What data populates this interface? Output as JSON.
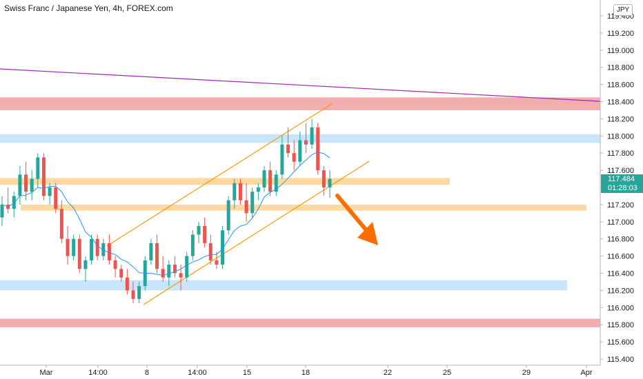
{
  "header": {
    "title": "Swiss Franc / Japanese Yen, 4h, FOREX.com",
    "currency": "JPY"
  },
  "badge": {
    "price": "117.484",
    "timer": "01:28:03"
  },
  "colors": {
    "up": "#26a69a",
    "down": "#ef5350",
    "ma": "#2196f3",
    "channel": "#ff9800",
    "trendline": "#9c27b0",
    "arrow": "#ff6d00",
    "zone_red": "#ef9a9a",
    "zone_blue": "#bbdefb",
    "zone_orange": "#ffcc80"
  },
  "chart_data": {
    "type": "candlestick",
    "y_range": [
      115.4,
      119.5
    ],
    "y_ticks": [
      "119.400",
      "119.200",
      "119.000",
      "118.800",
      "118.600",
      "118.400",
      "118.200",
      "118.000",
      "117.800",
      "117.600",
      "117.400",
      "117.200",
      "117.000",
      "116.800",
      "116.600",
      "116.400",
      "116.200",
      "116.000",
      "115.800",
      "115.600",
      "115.400"
    ],
    "x_ticks": [
      "Mar",
      "14:00",
      "8",
      "14:00",
      "15",
      "18",
      "22",
      "25",
      "29",
      "Apr"
    ],
    "ohlc": [
      [
        117.05,
        117.3,
        116.95,
        117.2
      ],
      [
        117.2,
        117.4,
        117.1,
        117.15
      ],
      [
        117.15,
        117.35,
        117.05,
        117.3
      ],
      [
        117.3,
        117.65,
        117.2,
        117.55
      ],
      [
        117.55,
        117.7,
        117.25,
        117.35
      ],
      [
        117.35,
        117.6,
        117.25,
        117.5
      ],
      [
        117.5,
        117.8,
        117.4,
        117.75
      ],
      [
        117.75,
        117.8,
        117.25,
        117.3
      ],
      [
        117.3,
        117.45,
        117.2,
        117.4
      ],
      [
        117.4,
        117.45,
        117.1,
        117.15
      ],
      [
        117.15,
        117.25,
        116.75,
        116.8
      ],
      [
        116.8,
        116.95,
        116.5,
        116.6
      ],
      [
        116.6,
        116.85,
        116.55,
        116.8
      ],
      [
        116.8,
        116.85,
        116.4,
        116.45
      ],
      [
        116.45,
        116.6,
        116.3,
        116.55
      ],
      [
        116.55,
        116.85,
        116.5,
        116.8
      ],
      [
        116.8,
        116.85,
        116.55,
        116.6
      ],
      [
        116.6,
        116.8,
        116.55,
        116.75
      ],
      [
        116.75,
        116.85,
        116.5,
        116.55
      ],
      [
        116.55,
        116.6,
        116.35,
        116.45
      ],
      [
        116.45,
        116.5,
        116.3,
        116.35
      ],
      [
        116.35,
        116.45,
        116.15,
        116.2
      ],
      [
        116.2,
        116.3,
        116.05,
        116.1
      ],
      [
        116.1,
        116.3,
        116.05,
        116.25
      ],
      [
        116.25,
        116.6,
        116.2,
        116.55
      ],
      [
        116.55,
        116.8,
        116.5,
        116.75
      ],
      [
        116.75,
        116.85,
        116.4,
        116.45
      ],
      [
        116.45,
        116.6,
        116.3,
        116.35
      ],
      [
        116.35,
        116.55,
        116.25,
        116.5
      ],
      [
        116.5,
        116.6,
        116.35,
        116.4
      ],
      [
        116.4,
        116.5,
        116.2,
        116.35
      ],
      [
        116.35,
        116.65,
        116.3,
        116.6
      ],
      [
        116.6,
        116.9,
        116.55,
        116.85
      ],
      [
        116.85,
        117.0,
        116.75,
        116.95
      ],
      [
        116.95,
        117.05,
        116.7,
        116.75
      ],
      [
        116.75,
        116.85,
        116.5,
        116.55
      ],
      [
        116.55,
        116.65,
        116.45,
        116.5
      ],
      [
        116.5,
        116.95,
        116.45,
        116.9
      ],
      [
        116.9,
        117.3,
        116.85,
        117.25
      ],
      [
        117.25,
        117.5,
        117.15,
        117.45
      ],
      [
        117.45,
        117.5,
        117.2,
        117.25
      ],
      [
        117.25,
        117.45,
        117.0,
        117.1
      ],
      [
        117.1,
        117.4,
        117.05,
        117.35
      ],
      [
        117.35,
        117.45,
        117.25,
        117.4
      ],
      [
        117.4,
        117.65,
        117.35,
        117.6
      ],
      [
        117.6,
        117.7,
        117.3,
        117.35
      ],
      [
        117.35,
        117.6,
        117.3,
        117.55
      ],
      [
        117.55,
        118.0,
        117.5,
        117.9
      ],
      [
        117.9,
        118.1,
        117.75,
        117.8
      ],
      [
        117.8,
        117.95,
        117.6,
        117.7
      ],
      [
        117.7,
        118.05,
        117.65,
        117.95
      ],
      [
        117.95,
        118.15,
        117.8,
        117.9
      ],
      [
        117.9,
        118.2,
        117.85,
        118.1
      ],
      [
        118.1,
        118.15,
        117.55,
        117.6
      ],
      [
        117.6,
        117.65,
        117.3,
        117.4
      ],
      [
        117.4,
        117.6,
        117.28,
        117.5
      ]
    ],
    "moving_average": true,
    "zones": [
      {
        "color": "red",
        "from": 118.3,
        "to": 118.45
      },
      {
        "color": "blue",
        "from": 117.92,
        "to": 118.02
      },
      {
        "color": "orange",
        "from": 117.43,
        "to": 117.51
      },
      {
        "color": "orange",
        "from": 117.13,
        "to": 117.2
      },
      {
        "color": "blue",
        "from": 116.2,
        "to": 116.32
      },
      {
        "color": "red",
        "from": 115.77,
        "to": 115.87
      }
    ],
    "grid": false
  }
}
